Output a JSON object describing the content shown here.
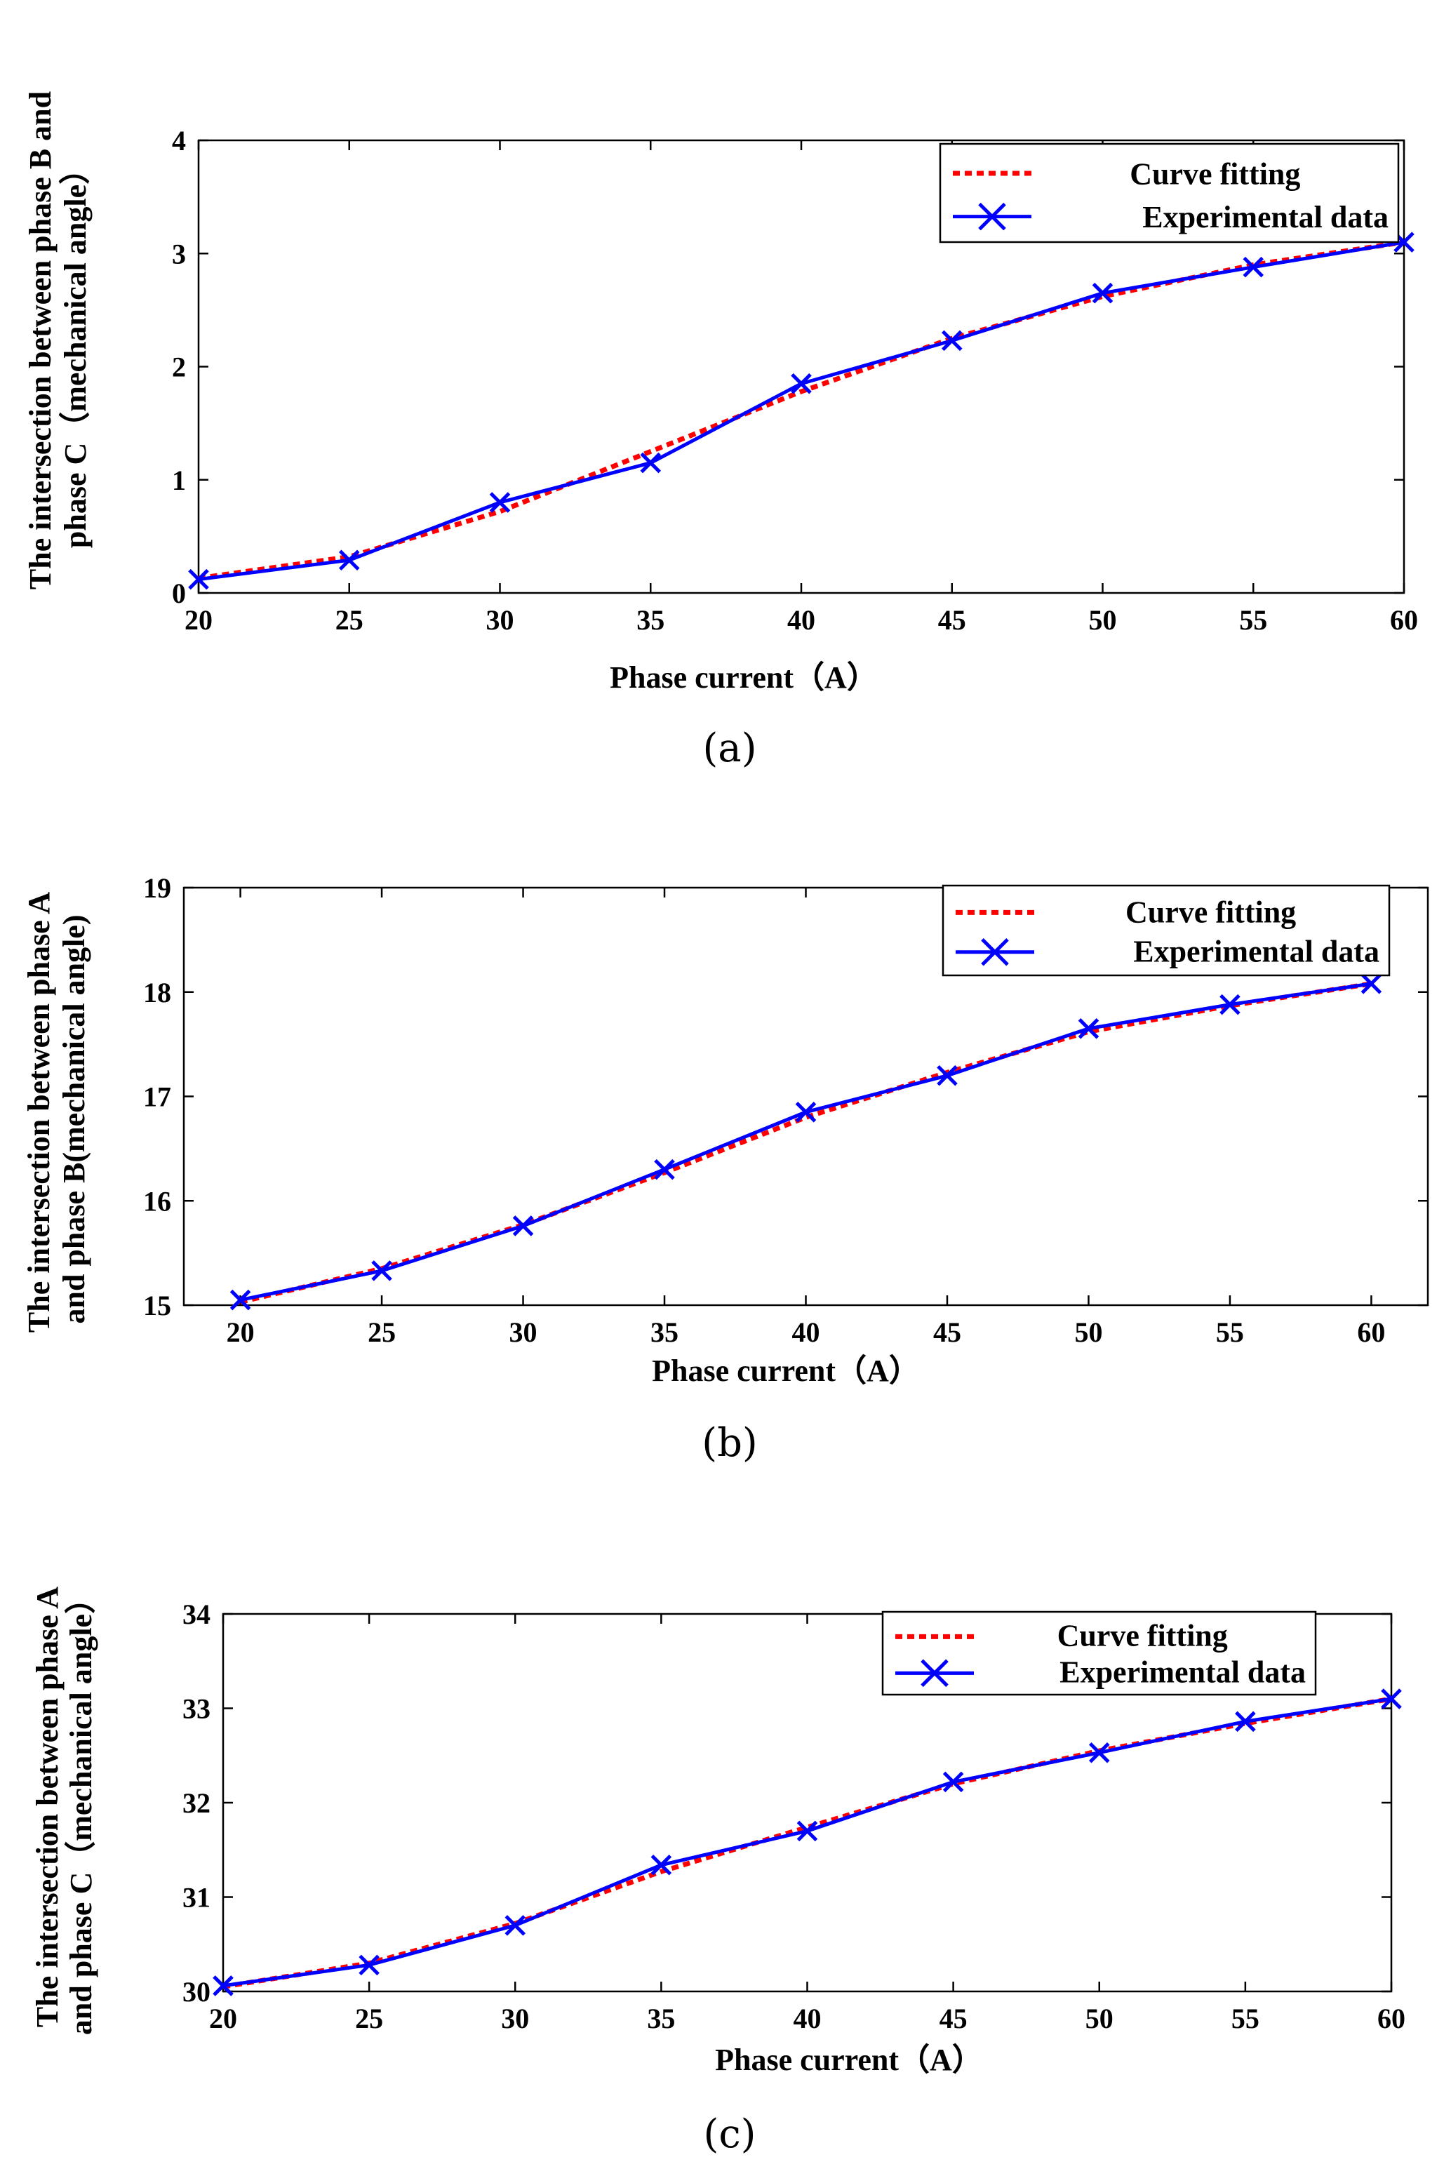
{
  "chart_data": [
    {
      "type": "line",
      "caption": "(a)",
      "xlabel": "Phase current（A）",
      "ylabel_lines": [
        "The intersection between phase B and",
        "phase C（mechanical angle）"
      ],
      "xlim": [
        20,
        60
      ],
      "ylim": [
        0,
        4
      ],
      "xticks": [
        20,
        25,
        30,
        35,
        40,
        45,
        50,
        55,
        60
      ],
      "yticks": [
        0,
        1,
        2,
        3,
        4
      ],
      "legend_position": "top-right",
      "series": [
        {
          "name": "Curve fitting",
          "style": "dashed",
          "color": "#ff0000",
          "x": [
            20,
            25,
            30,
            35,
            40,
            45,
            50,
            55,
            60
          ],
          "y": [
            0.13,
            0.32,
            0.72,
            1.25,
            1.78,
            2.25,
            2.62,
            2.9,
            3.1
          ]
        },
        {
          "name": "Experimental data",
          "style": "solid-x",
          "color": "#0000ff",
          "x": [
            20,
            25,
            30,
            35,
            40,
            45,
            50,
            55,
            60
          ],
          "y": [
            0.12,
            0.29,
            0.8,
            1.15,
            1.85,
            2.23,
            2.65,
            2.88,
            3.1
          ]
        }
      ]
    },
    {
      "type": "line",
      "caption": "(b)",
      "xlabel": "Phase current（A）",
      "ylabel_lines": [
        "The intersection between phase A",
        "and phase B(mechanical angle)"
      ],
      "xlim": [
        18,
        62
      ],
      "ylim": [
        15,
        19
      ],
      "xticks": [
        20,
        25,
        30,
        35,
        40,
        45,
        50,
        55,
        60
      ],
      "yticks": [
        15,
        16,
        17,
        18,
        19
      ],
      "legend_position": "top-right",
      "series": [
        {
          "name": "Curve fitting",
          "style": "dashed",
          "color": "#ff0000",
          "x": [
            20,
            25,
            30,
            35,
            40,
            45,
            50,
            55,
            60
          ],
          "y": [
            15.03,
            15.35,
            15.77,
            16.27,
            16.8,
            17.23,
            17.62,
            17.87,
            18.08
          ]
        },
        {
          "name": "Experimental data",
          "style": "solid-x",
          "color": "#0000ff",
          "x": [
            20,
            25,
            30,
            35,
            40,
            45,
            50,
            55,
            60
          ],
          "y": [
            15.05,
            15.33,
            15.76,
            16.3,
            16.85,
            17.2,
            17.65,
            17.88,
            18.08
          ]
        }
      ]
    },
    {
      "type": "line",
      "caption": "(c)",
      "xlabel": "Phase current（A）",
      "ylabel_lines": [
        "The intersection between phase A",
        "and phase C（mechanical angle）"
      ],
      "xlim": [
        20,
        60
      ],
      "ylim": [
        30,
        34
      ],
      "xticks": [
        20,
        25,
        30,
        35,
        40,
        45,
        50,
        55,
        60
      ],
      "yticks": [
        30,
        31,
        32,
        33,
        34
      ],
      "legend_position": "top-right",
      "series": [
        {
          "name": "Curve fitting",
          "style": "dashed",
          "color": "#ff0000",
          "x": [
            20,
            25,
            30,
            35,
            40,
            45,
            50,
            55,
            60
          ],
          "y": [
            30.05,
            30.3,
            30.72,
            31.27,
            31.74,
            32.2,
            32.55,
            32.84,
            33.1
          ]
        },
        {
          "name": "Experimental data",
          "style": "solid-x",
          "color": "#0000ff",
          "x": [
            20,
            25,
            30,
            35,
            40,
            45,
            50,
            55,
            60
          ],
          "y": [
            30.06,
            30.28,
            30.7,
            31.34,
            31.7,
            32.22,
            32.53,
            32.86,
            33.1
          ]
        }
      ]
    }
  ]
}
